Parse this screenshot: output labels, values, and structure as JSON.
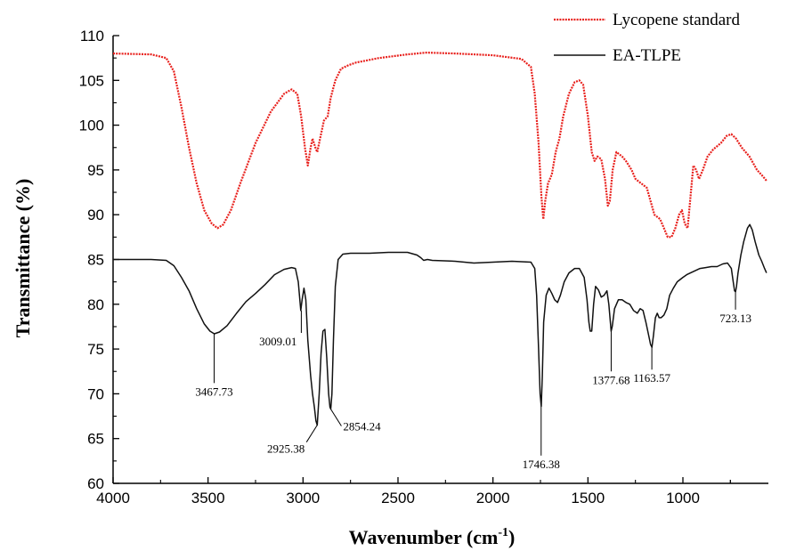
{
  "chart_data": {
    "type": "line",
    "xlabel": "Wavenumber (cm",
    "xlabel_sup": "-1",
    "xlabel_close": ")",
    "ylabel": "Transmittance (%)",
    "xlim": [
      4000,
      550
    ],
    "ylim": [
      60,
      110
    ],
    "x_ticks": [
      "4000",
      "3500",
      "3000",
      "2500",
      "2000",
      "1500",
      "1000"
    ],
    "y_ticks": [
      "60",
      "65",
      "70",
      "75",
      "80",
      "85",
      "90",
      "95",
      "100",
      "105",
      "110"
    ],
    "legend_position": "top-right",
    "series": [
      {
        "name": "Lycopene standard",
        "color": "#e8201c",
        "style": "dotted",
        "points": [
          [
            4000,
            108
          ],
          [
            3800,
            107.9
          ],
          [
            3720,
            107.5
          ],
          [
            3680,
            106
          ],
          [
            3640,
            102
          ],
          [
            3600,
            97.5
          ],
          [
            3560,
            93.5
          ],
          [
            3520,
            90.5
          ],
          [
            3480,
            89
          ],
          [
            3450,
            88.5
          ],
          [
            3420,
            88.9
          ],
          [
            3380,
            90.5
          ],
          [
            3330,
            93.5
          ],
          [
            3250,
            98
          ],
          [
            3170,
            101.5
          ],
          [
            3100,
            103.5
          ],
          [
            3060,
            104
          ],
          [
            3030,
            103.5
          ],
          [
            3010,
            101
          ],
          [
            2990,
            97.5
          ],
          [
            2975,
            95.5
          ],
          [
            2960,
            97.5
          ],
          [
            2950,
            98.5
          ],
          [
            2935,
            97.5
          ],
          [
            2925,
            97
          ],
          [
            2910,
            98.5
          ],
          [
            2890,
            100.5
          ],
          [
            2870,
            101
          ],
          [
            2855,
            103
          ],
          [
            2830,
            105
          ],
          [
            2800,
            106.3
          ],
          [
            2760,
            106.7
          ],
          [
            2720,
            107
          ],
          [
            2600,
            107.5
          ],
          [
            2450,
            107.9
          ],
          [
            2350,
            108.1
          ],
          [
            2200,
            108
          ],
          [
            2000,
            107.8
          ],
          [
            1850,
            107.4
          ],
          [
            1800,
            106.5
          ],
          [
            1780,
            103.5
          ],
          [
            1760,
            98
          ],
          [
            1745,
            92
          ],
          [
            1735,
            89.5
          ],
          [
            1725,
            91.5
          ],
          [
            1710,
            93.5
          ],
          [
            1690,
            94.5
          ],
          [
            1670,
            97
          ],
          [
            1650,
            98.5
          ],
          [
            1630,
            101
          ],
          [
            1600,
            103.5
          ],
          [
            1570,
            104.8
          ],
          [
            1545,
            105
          ],
          [
            1525,
            104.5
          ],
          [
            1500,
            101
          ],
          [
            1480,
            97
          ],
          [
            1465,
            96
          ],
          [
            1450,
            96.5
          ],
          [
            1430,
            96.2
          ],
          [
            1410,
            94
          ],
          [
            1395,
            91
          ],
          [
            1385,
            91.5
          ],
          [
            1370,
            95
          ],
          [
            1350,
            97
          ],
          [
            1320,
            96.5
          ],
          [
            1300,
            96
          ],
          [
            1270,
            95
          ],
          [
            1250,
            94
          ],
          [
            1220,
            93.5
          ],
          [
            1190,
            93
          ],
          [
            1170,
            91.5
          ],
          [
            1150,
            90
          ],
          [
            1120,
            89.5
          ],
          [
            1100,
            88.5
          ],
          [
            1080,
            87.5
          ],
          [
            1060,
            87.5
          ],
          [
            1040,
            88.5
          ],
          [
            1020,
            90
          ],
          [
            1005,
            90.5
          ],
          [
            990,
            89
          ],
          [
            975,
            88.5
          ],
          [
            960,
            92
          ],
          [
            945,
            95.5
          ],
          [
            930,
            95
          ],
          [
            915,
            94
          ],
          [
            895,
            95
          ],
          [
            870,
            96.5
          ],
          [
            840,
            97.3
          ],
          [
            800,
            98
          ],
          [
            770,
            98.8
          ],
          [
            745,
            99
          ],
          [
            720,
            98.5
          ],
          [
            690,
            97.5
          ],
          [
            650,
            96.5
          ],
          [
            610,
            95
          ],
          [
            580,
            94.3
          ],
          [
            560,
            93.8
          ]
        ]
      },
      {
        "name": "EA-TLPE",
        "color": "#111111",
        "style": "solid",
        "points": [
          [
            4000,
            85
          ],
          [
            3800,
            85
          ],
          [
            3720,
            84.9
          ],
          [
            3680,
            84.3
          ],
          [
            3640,
            83
          ],
          [
            3600,
            81.5
          ],
          [
            3560,
            79.5
          ],
          [
            3520,
            77.8
          ],
          [
            3490,
            77
          ],
          [
            3467,
            76.7
          ],
          [
            3440,
            76.9
          ],
          [
            3400,
            77.6
          ],
          [
            3350,
            79
          ],
          [
            3300,
            80.3
          ],
          [
            3250,
            81.2
          ],
          [
            3200,
            82.2
          ],
          [
            3150,
            83.3
          ],
          [
            3100,
            83.9
          ],
          [
            3060,
            84.1
          ],
          [
            3040,
            84
          ],
          [
            3025,
            82.5
          ],
          [
            3012,
            79.3
          ],
          [
            3005,
            80.5
          ],
          [
            2995,
            81.8
          ],
          [
            2985,
            80.5
          ],
          [
            2975,
            76
          ],
          [
            2960,
            72
          ],
          [
            2950,
            70
          ],
          [
            2940,
            68.5
          ],
          [
            2932,
            67
          ],
          [
            2925,
            66.5
          ],
          [
            2915,
            70
          ],
          [
            2905,
            74.5
          ],
          [
            2895,
            77
          ],
          [
            2885,
            77.2
          ],
          [
            2875,
            74
          ],
          [
            2865,
            70
          ],
          [
            2858,
            68.5
          ],
          [
            2854,
            68.3
          ],
          [
            2848,
            70
          ],
          [
            2840,
            76
          ],
          [
            2830,
            82
          ],
          [
            2815,
            85
          ],
          [
            2790,
            85.6
          ],
          [
            2750,
            85.7
          ],
          [
            2650,
            85.7
          ],
          [
            2550,
            85.8
          ],
          [
            2450,
            85.8
          ],
          [
            2400,
            85.5
          ],
          [
            2380,
            85.2
          ],
          [
            2365,
            84.9
          ],
          [
            2345,
            85
          ],
          [
            2320,
            84.9
          ],
          [
            2200,
            84.8
          ],
          [
            2100,
            84.6
          ],
          [
            2000,
            84.7
          ],
          [
            1900,
            84.8
          ],
          [
            1800,
            84.7
          ],
          [
            1780,
            84
          ],
          [
            1770,
            81
          ],
          [
            1760,
            75
          ],
          [
            1752,
            70
          ],
          [
            1746,
            68.6
          ],
          [
            1740,
            72
          ],
          [
            1733,
            78
          ],
          [
            1720,
            81
          ],
          [
            1705,
            81.8
          ],
          [
            1690,
            81.2
          ],
          [
            1675,
            80.5
          ],
          [
            1660,
            80.2
          ],
          [
            1645,
            81
          ],
          [
            1625,
            82.5
          ],
          [
            1600,
            83.5
          ],
          [
            1570,
            84
          ],
          [
            1545,
            84
          ],
          [
            1520,
            83
          ],
          [
            1505,
            80.5
          ],
          [
            1495,
            78
          ],
          [
            1488,
            77
          ],
          [
            1480,
            77
          ],
          [
            1470,
            80
          ],
          [
            1460,
            82
          ],
          [
            1445,
            81.6
          ],
          [
            1430,
            80.8
          ],
          [
            1415,
            81
          ],
          [
            1400,
            81.5
          ],
          [
            1390,
            80
          ],
          [
            1378,
            77
          ],
          [
            1372,
            77.5
          ],
          [
            1360,
            79.5
          ],
          [
            1340,
            80.5
          ],
          [
            1320,
            80.5
          ],
          [
            1300,
            80.2
          ],
          [
            1280,
            80
          ],
          [
            1260,
            79.3
          ],
          [
            1240,
            79
          ],
          [
            1225,
            79.5
          ],
          [
            1210,
            79.3
          ],
          [
            1195,
            78
          ],
          [
            1180,
            76.5
          ],
          [
            1170,
            75.5
          ],
          [
            1163,
            75.2
          ],
          [
            1155,
            76.5
          ],
          [
            1145,
            78.5
          ],
          [
            1135,
            79
          ],
          [
            1125,
            78.5
          ],
          [
            1115,
            78.5
          ],
          [
            1100,
            78.8
          ],
          [
            1085,
            79.5
          ],
          [
            1070,
            81
          ],
          [
            1050,
            81.8
          ],
          [
            1030,
            82.5
          ],
          [
            1000,
            83
          ],
          [
            980,
            83.3
          ],
          [
            960,
            83.5
          ],
          [
            940,
            83.7
          ],
          [
            910,
            84
          ],
          [
            880,
            84.1
          ],
          [
            850,
            84.2
          ],
          [
            820,
            84.2
          ],
          [
            790,
            84.5
          ],
          [
            765,
            84.6
          ],
          [
            745,
            84
          ],
          [
            735,
            82.5
          ],
          [
            728,
            81.5
          ],
          [
            723,
            81.4
          ],
          [
            718,
            82
          ],
          [
            710,
            83.5
          ],
          [
            695,
            85.5
          ],
          [
            680,
            87
          ],
          [
            660,
            88.5
          ],
          [
            648,
            88.9
          ],
          [
            635,
            88.3
          ],
          [
            620,
            87
          ],
          [
            600,
            85.5
          ],
          [
            585,
            84.8
          ],
          [
            570,
            84
          ],
          [
            560,
            83.5
          ]
        ]
      }
    ],
    "annotations": [
      {
        "x": 3467.73,
        "y": 76.7,
        "text": "3467.73",
        "dir": "down",
        "len": 5.5
      },
      {
        "x": 3009.01,
        "y": 79.3,
        "text": "3009.01",
        "dir": "down",
        "len": 2.5
      },
      {
        "x": 2925.38,
        "y": 66.5,
        "text": "2925.38",
        "dir": "down-left",
        "len": 1.5
      },
      {
        "x": 2854.24,
        "y": 68.3,
        "text": "2854.24",
        "dir": "down-right",
        "len": 1.5
      },
      {
        "x": 1746.38,
        "y": 68.6,
        "text": "1746.38",
        "dir": "down",
        "len": 5.5
      },
      {
        "x": 1377.68,
        "y": 77,
        "text": "1377.68",
        "dir": "down",
        "len": 4.5
      },
      {
        "x": 1163.57,
        "y": 75.2,
        "text": "1163.57",
        "dir": "down",
        "len": 2.5
      },
      {
        "x": 723.13,
        "y": 81.4,
        "text": "723.13",
        "dir": "down",
        "len": 2
      }
    ]
  }
}
